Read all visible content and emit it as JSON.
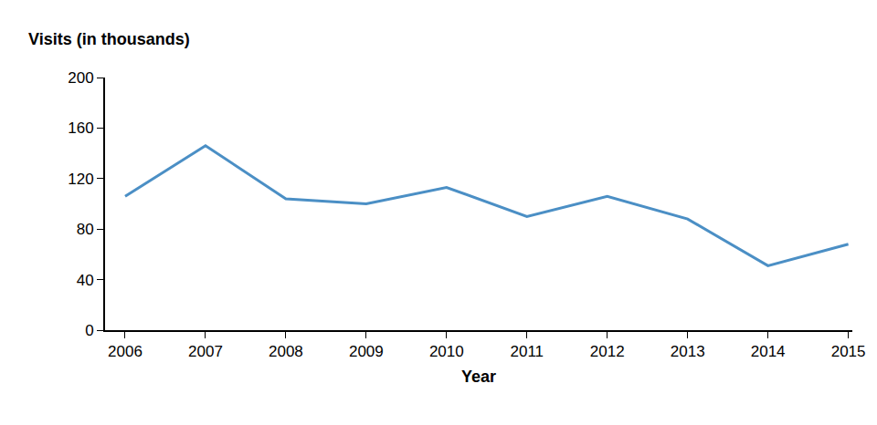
{
  "chart_data": {
    "type": "line",
    "ylabel": "Visits (in thousands)",
    "xlabel": "Year",
    "categories": [
      "2006",
      "2007",
      "2008",
      "2009",
      "2010",
      "2011",
      "2012",
      "2013",
      "2014",
      "2015"
    ],
    "values": [
      106,
      146,
      104,
      100,
      113,
      90,
      106,
      88,
      51,
      68
    ],
    "color": "#4b8fc5",
    "ylim": [
      0,
      200
    ],
    "yticks": [
      0,
      40,
      80,
      120,
      160,
      200
    ],
    "grid": false
  }
}
